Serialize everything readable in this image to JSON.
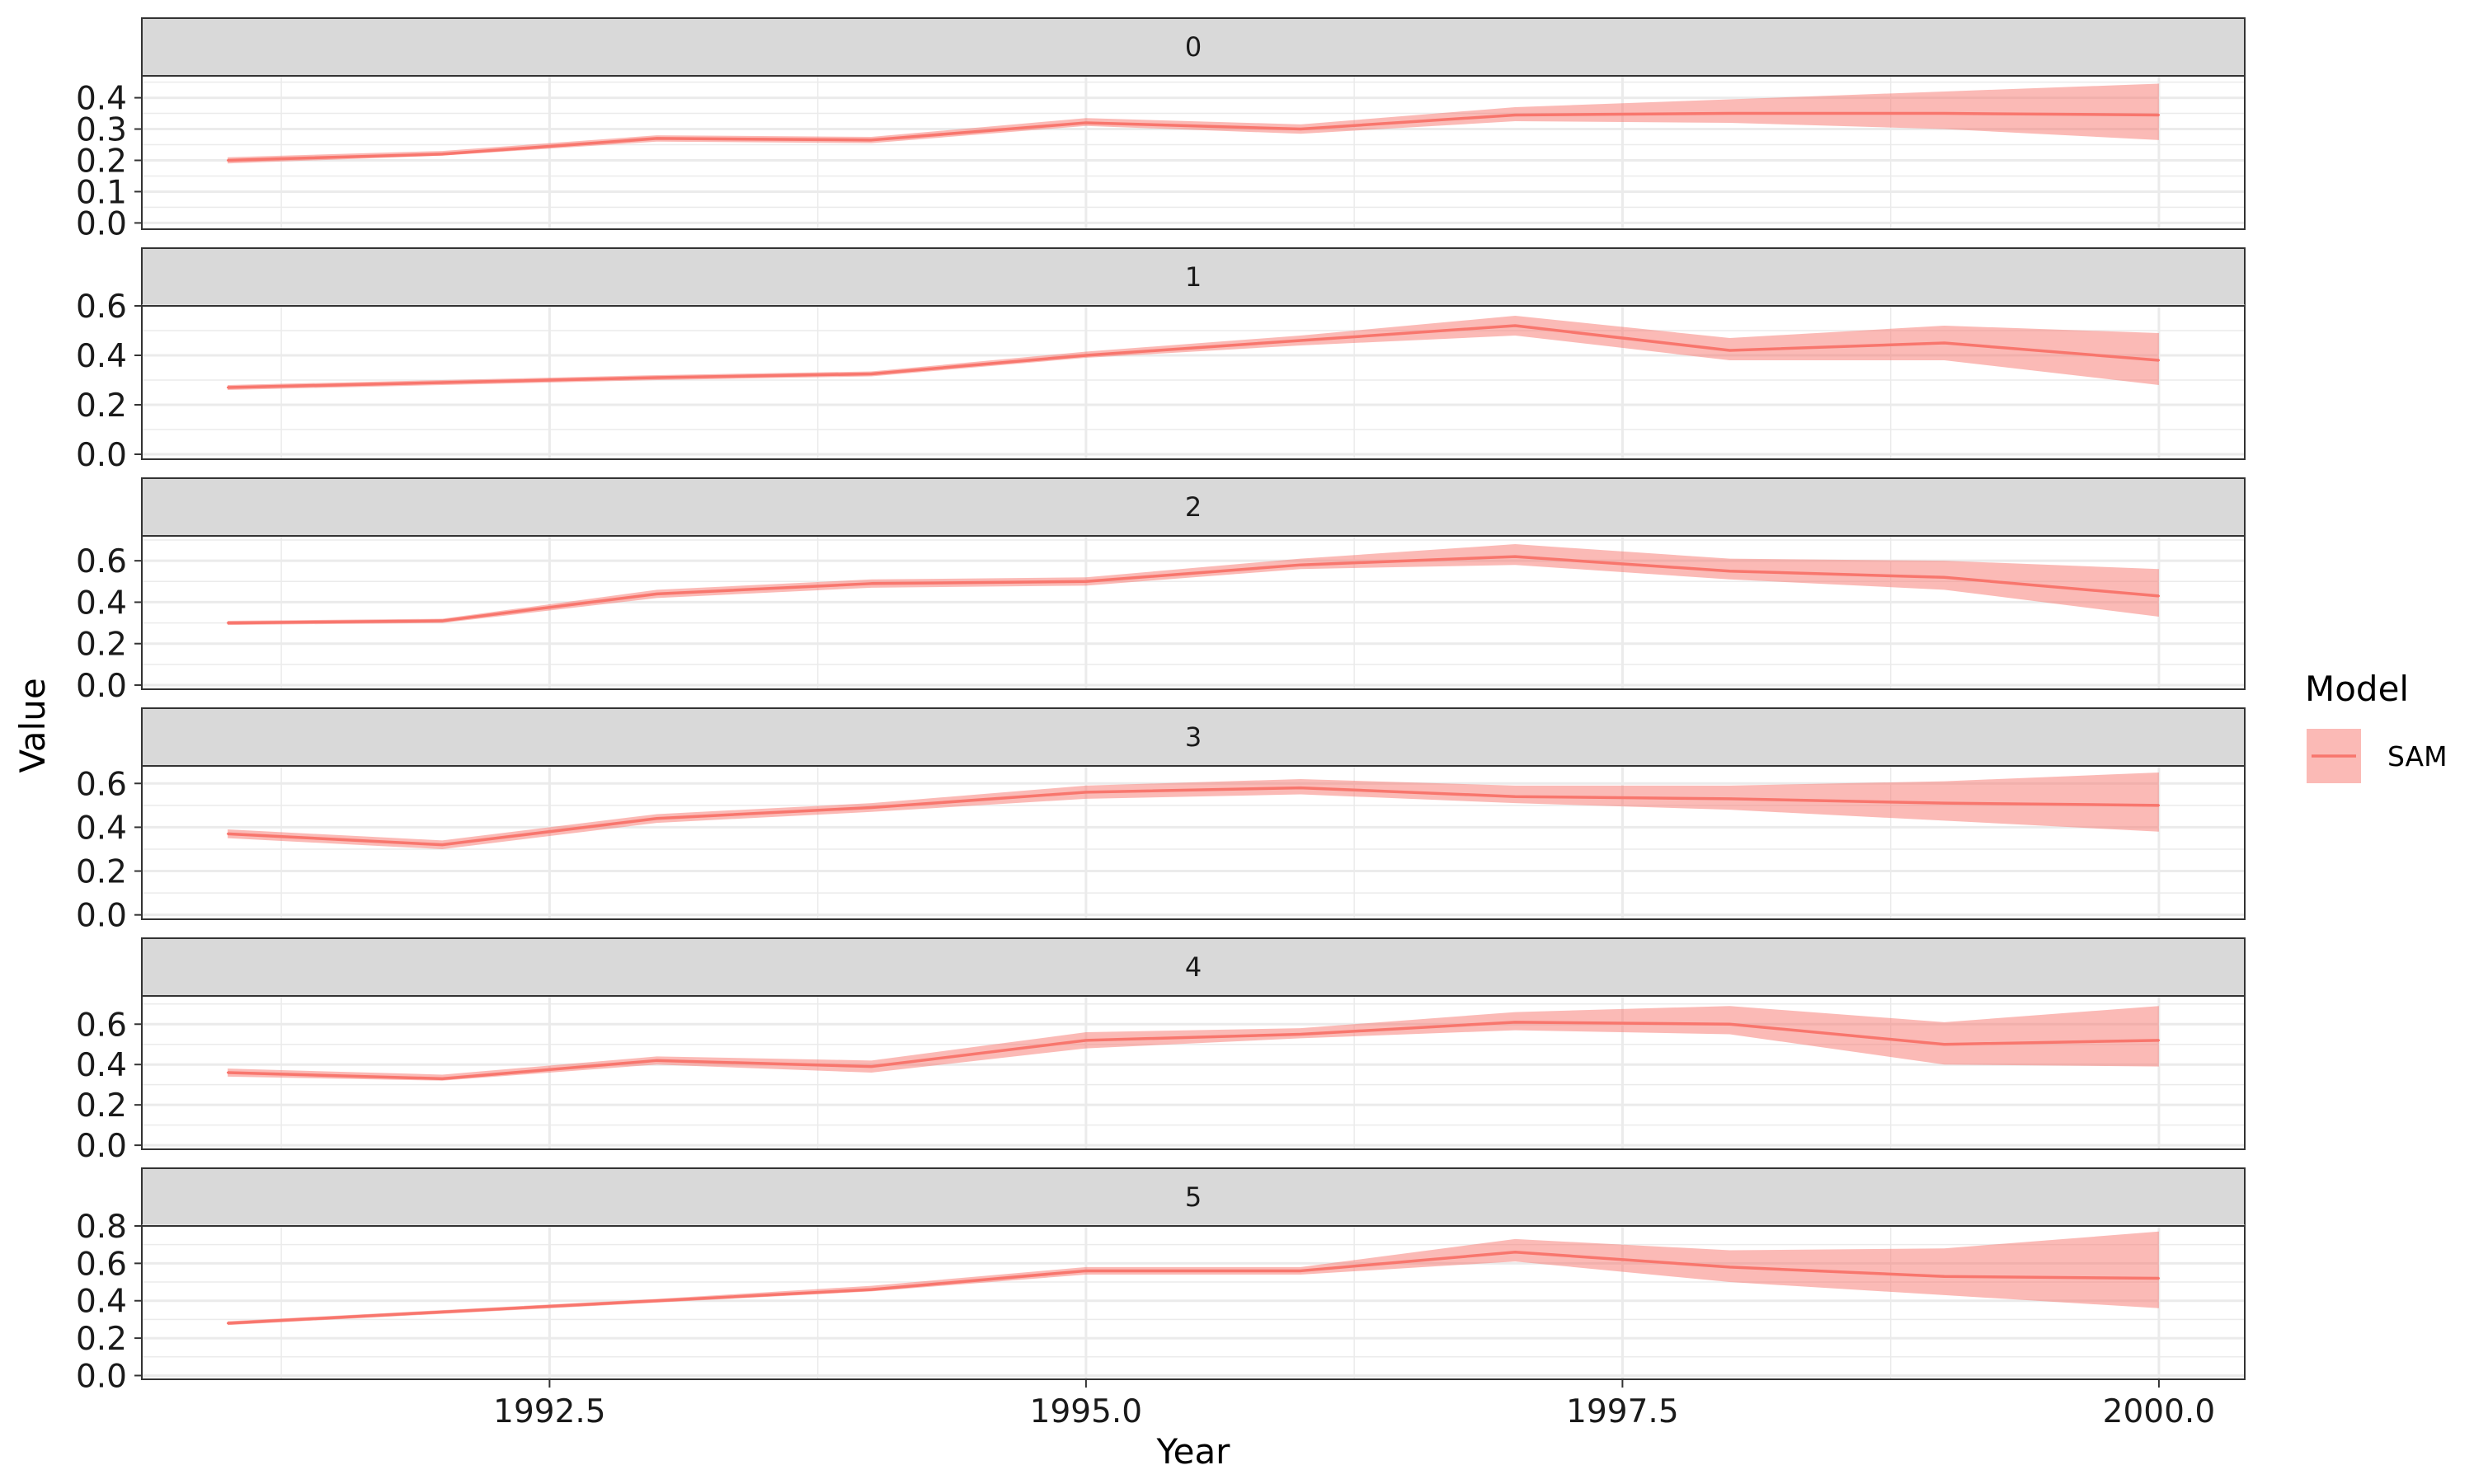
{
  "chart_data": {
    "type": "line",
    "facet_type": "vertical-panels",
    "xlabel": "Year",
    "ylabel": "Value",
    "xlim": [
      1990.6,
      2000.4
    ],
    "x_ticks": [
      1992.5,
      1995.0,
      1997.5,
      2000.0
    ],
    "x_tick_labels": [
      "1992.5",
      "1995.0",
      "1997.5",
      "2000.0"
    ],
    "x": [
      1991,
      1992,
      1993,
      1994,
      1995,
      1996,
      1997,
      1998,
      1999,
      2000
    ],
    "legend": {
      "title": "Model",
      "placement": "right",
      "entries": [
        {
          "name": "SAM",
          "color": "#F8766D"
        }
      ]
    },
    "colors": {
      "line": "#F8766D",
      "ribbon": "#F8766D",
      "strip_fill": "#D9D9D9",
      "grid": "#EBEBEB"
    },
    "grid": true,
    "panels": [
      {
        "label": "0",
        "ylim": [
          -0.02,
          0.47
        ],
        "y_ticks": [
          0.0,
          0.1,
          0.2,
          0.3,
          0.4
        ],
        "y_tick_labels": [
          "0.0",
          "0.1",
          "0.2",
          "0.3",
          "0.4"
        ],
        "series": [
          {
            "name": "SAM",
            "values": [
              0.2,
              0.22,
              0.27,
              0.265,
              0.32,
              0.3,
              0.345,
              0.35,
              0.35,
              0.345
            ],
            "lower": [
              0.19,
              0.215,
              0.26,
              0.255,
              0.31,
              0.285,
              0.325,
              0.32,
              0.3,
              0.265
            ],
            "upper": [
              0.21,
              0.23,
              0.28,
              0.275,
              0.335,
              0.315,
              0.37,
              0.395,
              0.42,
              0.445
            ]
          }
        ]
      },
      {
        "label": "1",
        "ylim": [
          -0.02,
          0.6
        ],
        "y_ticks": [
          0.0,
          0.2,
          0.4,
          0.6
        ],
        "y_tick_labels": [
          "0.0",
          "0.2",
          "0.4",
          "0.6"
        ],
        "series": [
          {
            "name": "SAM",
            "values": [
              0.27,
              0.29,
              0.31,
              0.325,
              0.4,
              0.46,
              0.52,
              0.42,
              0.45,
              0.38
            ],
            "lower": [
              0.26,
              0.28,
              0.3,
              0.315,
              0.39,
              0.44,
              0.48,
              0.38,
              0.38,
              0.28
            ],
            "upper": [
              0.28,
              0.3,
              0.32,
              0.335,
              0.415,
              0.48,
              0.56,
              0.47,
              0.52,
              0.49
            ]
          }
        ]
      },
      {
        "label": "2",
        "ylim": [
          -0.02,
          0.72
        ],
        "y_ticks": [
          0.0,
          0.2,
          0.4,
          0.6
        ],
        "y_tick_labels": [
          "0.0",
          "0.2",
          "0.4",
          "0.6"
        ],
        "series": [
          {
            "name": "SAM",
            "values": [
              0.3,
              0.31,
              0.44,
              0.49,
              0.5,
              0.58,
              0.62,
              0.55,
              0.52,
              0.43
            ],
            "lower": [
              0.29,
              0.3,
              0.42,
              0.47,
              0.48,
              0.56,
              0.58,
              0.51,
              0.46,
              0.33
            ],
            "upper": [
              0.31,
              0.32,
              0.46,
              0.51,
              0.52,
              0.61,
              0.68,
              0.61,
              0.6,
              0.56
            ]
          }
        ]
      },
      {
        "label": "3",
        "ylim": [
          -0.02,
          0.68
        ],
        "y_ticks": [
          0.0,
          0.2,
          0.4,
          0.6
        ],
        "y_tick_labels": [
          "0.0",
          "0.2",
          "0.4",
          "0.6"
        ],
        "series": [
          {
            "name": "SAM",
            "values": [
              0.37,
              0.32,
              0.44,
              0.49,
              0.56,
              0.58,
              0.54,
              0.53,
              0.51,
              0.5
            ],
            "lower": [
              0.35,
              0.3,
              0.42,
              0.47,
              0.53,
              0.55,
              0.51,
              0.48,
              0.43,
              0.38
            ],
            "upper": [
              0.39,
              0.34,
              0.46,
              0.51,
              0.59,
              0.62,
              0.59,
              0.59,
              0.61,
              0.65
            ]
          }
        ]
      },
      {
        "label": "4",
        "ylim": [
          -0.02,
          0.74
        ],
        "y_ticks": [
          0.0,
          0.2,
          0.4,
          0.6
        ],
        "y_tick_labels": [
          "0.0",
          "0.2",
          "0.4",
          "0.6"
        ],
        "series": [
          {
            "name": "SAM",
            "values": [
              0.36,
              0.33,
              0.42,
              0.39,
              0.52,
              0.55,
              0.61,
              0.6,
              0.5,
              0.52
            ],
            "lower": [
              0.34,
              0.32,
              0.4,
              0.36,
              0.48,
              0.53,
              0.57,
              0.55,
              0.4,
              0.39
            ],
            "upper": [
              0.38,
              0.35,
              0.44,
              0.42,
              0.56,
              0.58,
              0.66,
              0.69,
              0.61,
              0.69
            ]
          }
        ]
      },
      {
        "label": "5",
        "ylim": [
          -0.02,
          0.8
        ],
        "y_ticks": [
          0.0,
          0.2,
          0.4,
          0.6,
          0.8
        ],
        "y_tick_labels": [
          "0.0",
          "0.2",
          "0.4",
          "0.6",
          "0.8"
        ],
        "series": [
          {
            "name": "SAM",
            "values": [
              0.28,
              0.34,
              0.4,
              0.46,
              0.56,
              0.56,
              0.66,
              0.58,
              0.53,
              0.52
            ],
            "lower": [
              0.27,
              0.33,
              0.39,
              0.45,
              0.54,
              0.54,
              0.61,
              0.5,
              0.43,
              0.36
            ],
            "upper": [
              0.29,
              0.35,
              0.41,
              0.48,
              0.58,
              0.58,
              0.73,
              0.67,
              0.68,
              0.77
            ]
          }
        ]
      }
    ]
  }
}
